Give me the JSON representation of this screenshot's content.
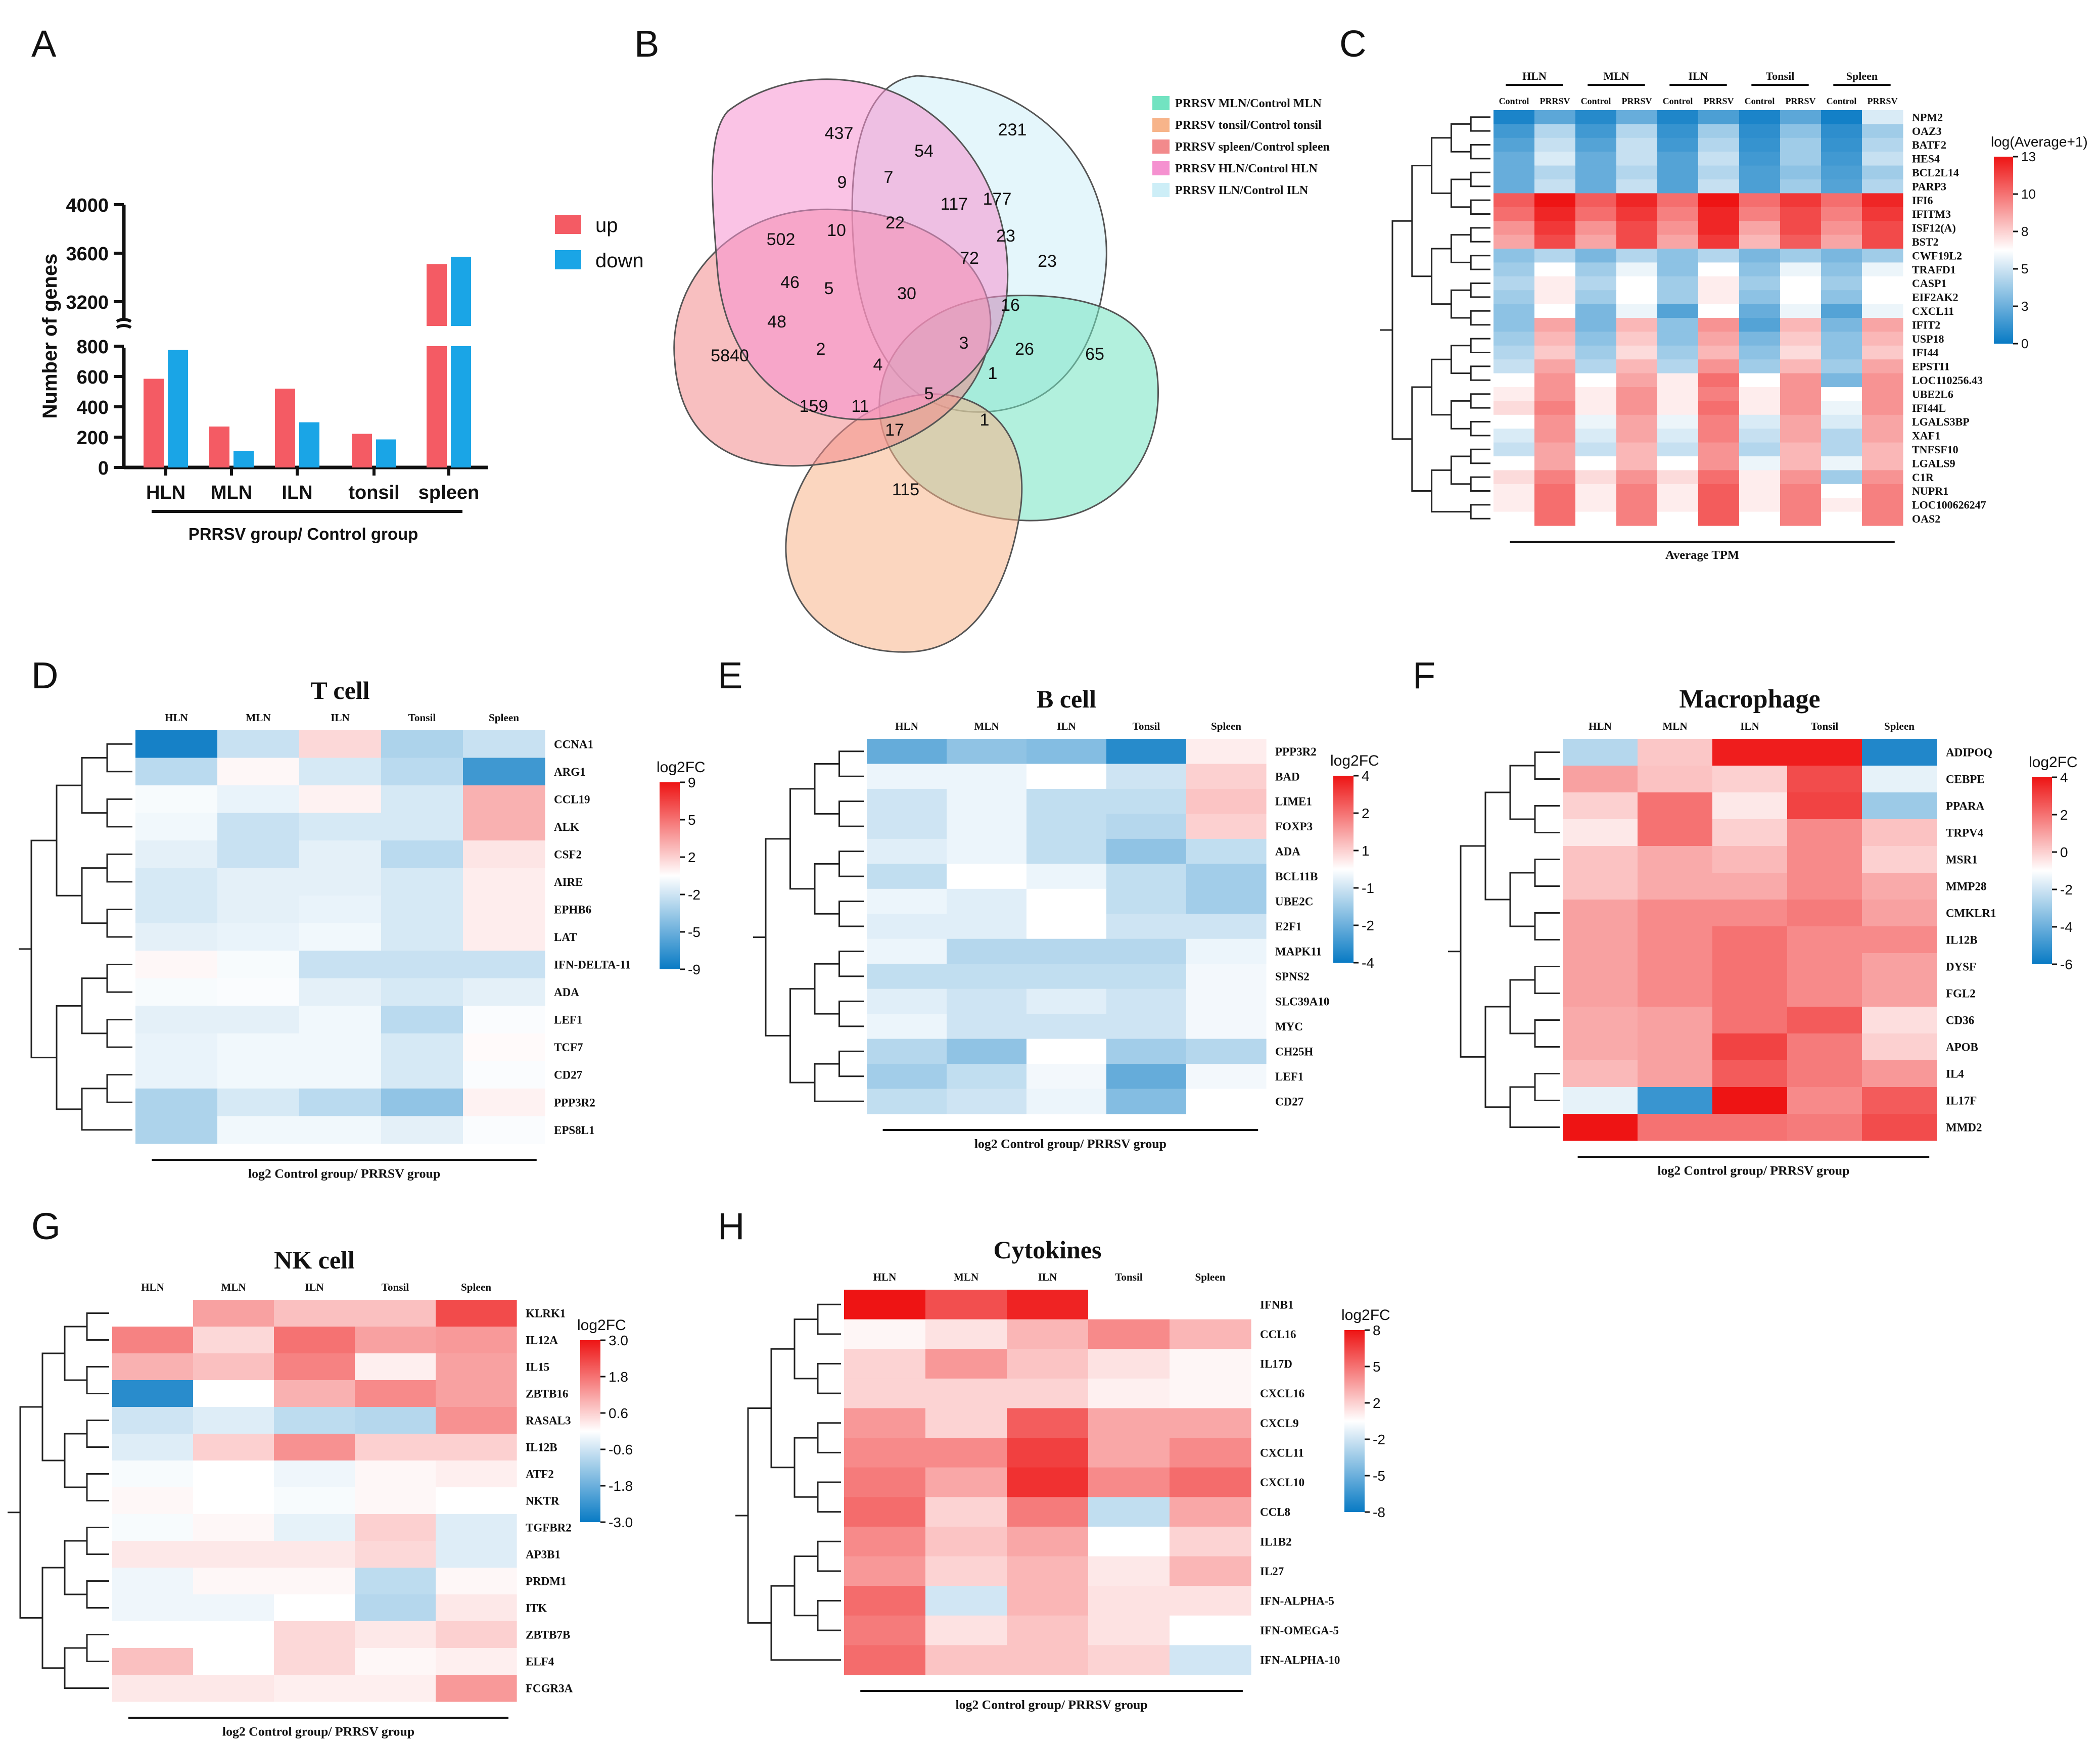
{
  "panel_labels": [
    "A",
    "B",
    "C",
    "D",
    "E",
    "F",
    "G",
    "H"
  ],
  "chart_data": [
    {
      "id": "A",
      "type": "bar",
      "ylabel": "Number of genes",
      "xlabel": "PRRSV group/ Control group",
      "categories": [
        "HLN",
        "MLN",
        "ILN",
        "tonsil",
        "spleen"
      ],
      "series": [
        {
          "name": "up",
          "color": "#F45B64",
          "values": [
            585,
            270,
            520,
            222,
            3510
          ]
        },
        {
          "name": "down",
          "color": "#1AA5E6",
          "values": [
            775,
            110,
            298,
            185,
            3570
          ]
        }
      ],
      "ylim": [
        0,
        4000
      ],
      "axis_break": [
        800,
        3100
      ],
      "yticks_low": [
        "0",
        "200",
        "400",
        "600",
        "800"
      ],
      "yticks_high": [
        "3200",
        "3600",
        "4000"
      ]
    },
    {
      "id": "B",
      "type": "venn",
      "legend": [
        {
          "label": "PRRSV MLN/Control MLN",
          "color": "#72E3C1"
        },
        {
          "label": "PRRSV tonsil/Control tonsil",
          "color": "#F7B48A"
        },
        {
          "label": "PRRSV spleen/Control spleen",
          "color": "#F28A8C"
        },
        {
          "label": "PRRSV HLN/Control HLN",
          "color": "#F591D0"
        },
        {
          "label": "PRRSV ILN/Control ILN",
          "color": "#CDEEF7"
        }
      ],
      "counts": [
        "437",
        "231",
        "54",
        "9",
        "7",
        "117",
        "177",
        "502",
        "10",
        "22",
        "23",
        "72",
        "23",
        "46",
        "5",
        "30",
        "16",
        "48",
        "5840",
        "2",
        "4",
        "3",
        "26",
        "65",
        "159",
        "11",
        "5",
        "1",
        "17",
        "1",
        "115"
      ]
    },
    {
      "id": "C",
      "type": "heatmap",
      "legend_title": "log(Average+1)",
      "legend_ticks": [
        "13",
        "10",
        "8",
        "5",
        "3",
        "0"
      ],
      "vmin": 0,
      "vmax": 13,
      "col_groups": [
        "HLN",
        "MLN",
        "ILN",
        "Tonsil",
        "Spleen"
      ],
      "col_sub": [
        "Control",
        "PRRSV"
      ],
      "xlabel": "Average TPM",
      "rows": [
        "NPM2",
        "OAZ3",
        "BATF2",
        "HES4",
        "BCL2L14",
        "PARP3",
        "IFI6",
        "IFITM3",
        "ISF12(A)",
        "BST2",
        "CWF19L2",
        "TRAFD1",
        "CASP1",
        "EIF2AK2",
        "CXCL11",
        "IFIT2",
        "USP18",
        "IFI44",
        "EPSTI1",
        "LOC110256.43",
        "UBE2L6",
        "IFI44L",
        "LGALS3BP",
        "XAF1",
        "TNFSF10",
        "LGALS9",
        "C1R",
        "NUPR1",
        "LOC100626247",
        "OAS2"
      ],
      "values": [
        [
          0.5,
          2.2,
          0.8,
          2.5,
          0.6,
          1.8,
          0.5,
          2.2,
          0.3,
          5.5
        ],
        [
          1.5,
          4.5,
          1.5,
          4.5,
          1.2,
          4.0,
          1.0,
          3.5,
          1.0,
          4.0
        ],
        [
          2.0,
          5.0,
          2.0,
          5.0,
          1.5,
          4.5,
          1.2,
          4.0,
          1.2,
          4.5
        ],
        [
          2.5,
          5.5,
          2.5,
          5.0,
          2.0,
          5.0,
          1.5,
          4.0,
          1.5,
          5.0
        ],
        [
          2.5,
          4.5,
          2.5,
          4.5,
          2.0,
          4.5,
          1.8,
          3.5,
          1.8,
          4.0
        ],
        [
          2.5,
          5.0,
          2.5,
          5.0,
          2.0,
          5.0,
          1.8,
          4.0,
          2.0,
          4.5
        ],
        [
          11.0,
          13.0,
          11.0,
          12.5,
          10.5,
          13.0,
          10.5,
          12.0,
          10.5,
          12.5
        ],
        [
          10.5,
          12.5,
          10.5,
          12.0,
          10.0,
          12.5,
          10.0,
          11.5,
          10.0,
          12.0
        ],
        [
          9.5,
          12.0,
          9.5,
          11.5,
          9.5,
          12.5,
          9.0,
          11.5,
          9.5,
          11.5
        ],
        [
          9.0,
          11.5,
          9.0,
          11.5,
          9.0,
          12.0,
          8.5,
          11.0,
          9.0,
          11.5
        ],
        [
          3.5,
          4.5,
          3.0,
          4.5,
          3.5,
          4.5,
          3.0,
          4.0,
          3.0,
          4.0
        ],
        [
          4.0,
          6.5,
          4.0,
          6.0,
          3.5,
          6.5,
          3.5,
          6.0,
          3.5,
          6.0
        ],
        [
          4.5,
          7.0,
          4.5,
          6.5,
          4.0,
          7.0,
          4.0,
          6.5,
          4.0,
          6.5
        ],
        [
          4.0,
          7.0,
          4.0,
          6.5,
          4.0,
          7.0,
          3.5,
          6.5,
          3.5,
          6.5
        ],
        [
          3.5,
          6.5,
          3.0,
          6.0,
          2.0,
          6.5,
          2.5,
          6.0,
          2.0,
          6.0
        ],
        [
          3.5,
          9.0,
          3.0,
          8.5,
          3.5,
          9.5,
          2.0,
          8.5,
          3.0,
          9.0
        ],
        [
          4.0,
          8.5,
          3.5,
          8.0,
          3.5,
          9.0,
          3.0,
          8.0,
          3.5,
          8.5
        ],
        [
          4.5,
          8.0,
          4.0,
          7.5,
          4.0,
          8.5,
          3.5,
          7.5,
          3.5,
          8.0
        ],
        [
          5.0,
          9.0,
          4.5,
          8.5,
          4.5,
          9.5,
          4.0,
          8.5,
          4.0,
          9.0
        ],
        [
          6.5,
          9.5,
          6.5,
          9.0,
          7.0,
          10.5,
          6.5,
          9.5,
          3.0,
          9.5
        ],
        [
          7.0,
          9.5,
          7.0,
          9.5,
          7.0,
          10.0,
          7.0,
          9.5,
          6.5,
          9.5
        ],
        [
          7.5,
          10.0,
          7.0,
          9.5,
          7.0,
          10.5,
          7.0,
          9.5,
          6.0,
          9.5
        ],
        [
          6.5,
          9.5,
          6.0,
          9.0,
          6.0,
          10.0,
          5.5,
          9.0,
          5.5,
          9.0
        ],
        [
          5.5,
          9.5,
          5.5,
          9.0,
          5.5,
          10.0,
          5.0,
          9.0,
          4.5,
          9.0
        ],
        [
          5.0,
          9.0,
          5.0,
          8.5,
          5.0,
          9.5,
          4.5,
          8.5,
          4.5,
          8.5
        ],
        [
          6.5,
          9.0,
          6.5,
          8.5,
          6.5,
          9.5,
          6.0,
          8.5,
          6.0,
          8.5
        ],
        [
          7.5,
          10.0,
          7.5,
          9.5,
          7.5,
          10.5,
          7.0,
          9.5,
          4.0,
          9.5
        ],
        [
          7.0,
          10.5,
          7.0,
          10.0,
          7.0,
          11.0,
          7.0,
          10.0,
          6.5,
          10.0
        ],
        [
          7.0,
          10.5,
          7.0,
          10.0,
          7.0,
          11.0,
          7.0,
          10.0,
          7.0,
          10.0
        ],
        [
          6.5,
          10.5,
          6.5,
          10.0,
          6.5,
          11.0,
          6.5,
          10.0,
          6.5,
          10.0
        ]
      ]
    },
    {
      "id": "D",
      "type": "heatmap",
      "title": "T cell",
      "legend_title": "log2FC",
      "legend_ticks": [
        "9",
        "5",
        "2",
        "-2",
        "-5",
        "-9"
      ],
      "vmin": -9,
      "vmax": 9,
      "cols": [
        "HLN",
        "MLN",
        "ILN",
        "Tonsil",
        "Spleen"
      ],
      "xlabel": "log2 Control group/ PRRSV group",
      "rows": [
        "CCNA1",
        "ARG1",
        "CCL19",
        "ALK",
        "CSF2",
        "AIRE",
        "EPHB6",
        "LAT",
        "IFN-DELTA-11",
        "ADA",
        "LEF1",
        "TCF7",
        "CD27",
        "PPP3R2",
        "EPS8L1"
      ],
      "values": [
        [
          -8.5,
          -2.0,
          1.5,
          -3.0,
          -2.0
        ],
        [
          -2.5,
          0.3,
          -1.5,
          -2.5,
          -7.0
        ],
        [
          -0.3,
          -0.8,
          0.5,
          -1.5,
          3.0
        ],
        [
          -0.5,
          -2.0,
          -1.5,
          -1.5,
          3.0
        ],
        [
          -1.0,
          -2.0,
          -1.0,
          -2.5,
          1.0
        ],
        [
          -1.5,
          -1.0,
          -1.0,
          -1.5,
          0.7
        ],
        [
          -1.5,
          -1.0,
          -0.8,
          -1.5,
          0.7
        ],
        [
          -1.0,
          -0.8,
          -0.5,
          -1.5,
          0.7
        ],
        [
          0.3,
          -0.3,
          -2.0,
          -2.0,
          -2.0
        ],
        [
          -0.3,
          -0.2,
          -1.0,
          -1.5,
          -1.0
        ],
        [
          -1.0,
          -1.0,
          -0.5,
          -2.5,
          -0.2
        ],
        [
          -0.8,
          -0.5,
          -0.5,
          -1.5,
          0.2
        ],
        [
          -0.8,
          -0.5,
          -0.5,
          -1.5,
          -0.2
        ],
        [
          -3.0,
          -1.5,
          -2.5,
          -4.0,
          0.5
        ],
        [
          -3.0,
          -0.5,
          -0.5,
          -1.0,
          -0.2
        ]
      ]
    },
    {
      "id": "E",
      "type": "heatmap",
      "title": "B cell",
      "legend_title": "log2FC",
      "legend_ticks": [
        "4",
        "2",
        "1",
        "-1",
        "-2",
        "-4"
      ],
      "vmin": -4,
      "vmax": 4,
      "cols": [
        "HLN",
        "MLN",
        "ILN",
        "Tonsil",
        "Spleen"
      ],
      "xlabel": "log2 Control group/ PRRSV group",
      "rows": [
        "PPP3R2",
        "BAD",
        "LIME1",
        "FOXP3",
        "ADA",
        "BCL11B",
        "UBE2C",
        "E2F1",
        "MAPK11",
        "SPNS2",
        "SLC39A10",
        "MYC",
        "CH25H",
        "LEF1",
        "CD27"
      ],
      "values": [
        [
          -2.5,
          -1.8,
          -2.0,
          -3.5,
          0.3
        ],
        [
          -0.3,
          -0.3,
          0.0,
          -0.8,
          0.8
        ],
        [
          -0.8,
          -0.3,
          -1.0,
          -1.0,
          1.0
        ],
        [
          -0.8,
          -0.3,
          -1.0,
          -1.2,
          0.8
        ],
        [
          -0.5,
          -0.3,
          -1.0,
          -1.8,
          -1.0
        ],
        [
          -1.0,
          0.0,
          -0.3,
          -1.0,
          -1.5
        ],
        [
          -0.3,
          -0.5,
          0.0,
          -1.0,
          -1.5
        ],
        [
          -0.5,
          -0.5,
          0.0,
          -0.8,
          -0.8
        ],
        [
          -0.3,
          -1.2,
          -1.2,
          -1.2,
          -0.3
        ],
        [
          -1.0,
          -1.0,
          -1.0,
          -1.0,
          -0.2
        ],
        [
          -0.5,
          -0.8,
          -0.5,
          -0.8,
          -0.2
        ],
        [
          -0.3,
          -0.8,
          -0.8,
          -0.8,
          -0.2
        ],
        [
          -1.2,
          -1.8,
          0.0,
          -1.5,
          -1.2
        ],
        [
          -1.5,
          -1.0,
          -0.2,
          -2.5,
          -0.2
        ],
        [
          -1.0,
          -0.8,
          -0.3,
          -2.0,
          0.0
        ]
      ]
    },
    {
      "id": "F",
      "type": "heatmap",
      "title": "Macrophage",
      "legend_title": "log2FC",
      "legend_ticks": [
        "4",
        "2",
        "0",
        "-2",
        "-4",
        "-6"
      ],
      "vmin": -6,
      "vmax": 4,
      "cols": [
        "HLN",
        "MLN",
        "ILN",
        "Tonsil",
        "Spleen"
      ],
      "xlabel": "log2 Control group/ PRRSV group",
      "rows": [
        "ADIPOQ",
        "CEBPE",
        "PPARA",
        "TRPV4",
        "MSR1",
        "MMP28",
        "CMKLR1",
        "IL12B",
        "DYSF",
        "FGL2",
        "CD36",
        "APOB",
        "IL4",
        "IL17F",
        "MMD2"
      ],
      "values": [
        [
          -2.5,
          0.2,
          3.8,
          3.8,
          -5.5
        ],
        [
          1.0,
          0.3,
          0.0,
          2.8,
          -1.5
        ],
        [
          0.0,
          2.0,
          -0.5,
          3.0,
          -3.0
        ],
        [
          -0.5,
          2.0,
          0.0,
          1.5,
          0.3
        ],
        [
          0.3,
          0.8,
          0.5,
          1.5,
          0.0
        ],
        [
          0.3,
          0.8,
          0.8,
          1.5,
          0.8
        ],
        [
          1.0,
          1.5,
          1.5,
          1.8,
          1.0
        ],
        [
          1.0,
          1.5,
          2.0,
          1.5,
          1.5
        ],
        [
          1.0,
          1.5,
          2.0,
          1.5,
          1.0
        ],
        [
          1.0,
          1.5,
          2.0,
          1.5,
          1.0
        ],
        [
          0.8,
          1.0,
          2.0,
          2.5,
          -0.3
        ],
        [
          0.8,
          1.0,
          3.0,
          1.8,
          0.0
        ],
        [
          0.5,
          1.0,
          2.5,
          1.8,
          1.2
        ],
        [
          -1.5,
          -5.0,
          4.0,
          1.5,
          2.5
        ],
        [
          4.0,
          2.0,
          2.0,
          1.8,
          2.8
        ]
      ]
    },
    {
      "id": "G",
      "type": "heatmap",
      "title": "NK cell",
      "legend_title": "log2FC",
      "legend_ticks": [
        "3.0",
        "1.8",
        "0.6",
        "-0.6",
        "-1.8",
        "-3.0"
      ],
      "vmin": -3,
      "vmax": 3,
      "cols": [
        "HLN",
        "MLN",
        "ILN",
        "Tonsil",
        "Spleen"
      ],
      "xlabel": "log2 Control group/ PRRSV group",
      "rows": [
        "KLRK1",
        "IL12A",
        "IL15",
        "ZBTB16",
        "RASAL3",
        "IL12B",
        "ATF2",
        "NKTR",
        "TGFBR2",
        "AP3B1",
        "PRDM1",
        "ITK",
        "ZBTB7B",
        "ELF4",
        "FCGR3A"
      ],
      "values": [
        [
          0.0,
          1.2,
          0.8,
          0.8,
          2.3
        ],
        [
          1.6,
          0.5,
          1.8,
          1.2,
          1.3
        ],
        [
          1.0,
          0.8,
          1.6,
          0.2,
          1.2
        ],
        [
          -2.6,
          0.0,
          1.0,
          1.5,
          1.2
        ],
        [
          -0.6,
          -0.4,
          -0.8,
          -0.9,
          1.4
        ],
        [
          -0.4,
          0.6,
          1.4,
          0.6,
          0.6
        ],
        [
          -0.1,
          0.0,
          -0.2,
          0.1,
          0.2
        ],
        [
          0.1,
          0.0,
          -0.1,
          0.1,
          0.0
        ],
        [
          -0.1,
          0.1,
          -0.3,
          0.6,
          -0.4
        ],
        [
          0.3,
          0.3,
          0.3,
          0.5,
          -0.4
        ],
        [
          -0.2,
          0.1,
          0.1,
          -0.8,
          0.1
        ],
        [
          -0.2,
          -0.2,
          0.0,
          -0.9,
          0.3
        ],
        [
          0.0,
          0.0,
          0.5,
          0.3,
          0.6
        ],
        [
          0.8,
          0.0,
          0.5,
          0.1,
          0.2
        ],
        [
          0.3,
          0.3,
          0.2,
          0.2,
          1.3
        ]
      ]
    },
    {
      "id": "H",
      "type": "heatmap",
      "title": "Cytokines",
      "legend_title": "log2FC",
      "legend_ticks": [
        "8",
        "5",
        "2",
        "-2",
        "-5",
        "-8"
      ],
      "vmin": -8,
      "vmax": 8,
      "cols": [
        "HLN",
        "MLN",
        "ILN",
        "Tonsil",
        "Spleen"
      ],
      "xlabel": "log2 Control group/ PRRSV group",
      "rows": [
        "IFNB1",
        "CCL16",
        "IL17D",
        "CXCL16",
        "CXCL9",
        "CXCL11",
        "CXCL10",
        "CCL8",
        "IL1B2",
        "IL27",
        "IFN-ALPHA-5",
        "IFN-OMEGA-5",
        "IFN-ALPHA-10"
      ],
      "values": [
        [
          8.0,
          6.0,
          7.5,
          0.0,
          0.0
        ],
        [
          0.3,
          1.0,
          2.5,
          4.0,
          2.5
        ],
        [
          1.5,
          3.5,
          2.0,
          1.0,
          0.3
        ],
        [
          1.5,
          1.5,
          1.5,
          0.5,
          0.3
        ],
        [
          3.5,
          1.5,
          5.5,
          3.0,
          3.0
        ],
        [
          4.0,
          4.0,
          6.5,
          3.0,
          4.0
        ],
        [
          4.5,
          3.0,
          7.0,
          4.0,
          5.0
        ],
        [
          5.0,
          1.5,
          4.5,
          -2.0,
          3.0
        ],
        [
          4.0,
          2.0,
          3.0,
          0.0,
          1.5
        ],
        [
          3.5,
          1.5,
          2.5,
          0.8,
          2.5
        ],
        [
          5.0,
          -1.5,
          2.5,
          1.0,
          1.0
        ],
        [
          4.5,
          1.0,
          2.0,
          1.0,
          0.0
        ],
        [
          5.0,
          2.0,
          2.0,
          1.5,
          -1.5
        ]
      ]
    }
  ]
}
